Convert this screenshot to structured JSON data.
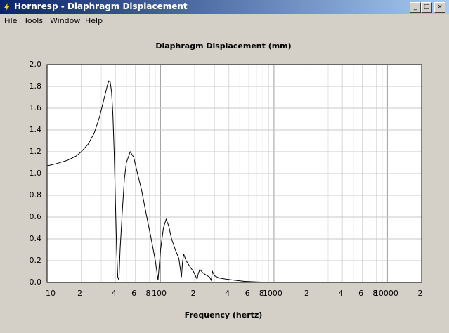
{
  "window": {
    "title": "Hornresp - Diaphragm Displacement",
    "menu": [
      "File",
      "Tools",
      "Window",
      "Help"
    ]
  },
  "chart_data": {
    "type": "line",
    "title": "Diaphragm Displacement (mm)",
    "xlabel": "Frequency (hertz)",
    "xscale": "log",
    "grid": true,
    "x": [
      10,
      12,
      15,
      18,
      20,
      23,
      26,
      29,
      32,
      34,
      35,
      36,
      37,
      38,
      39,
      40,
      41,
      42,
      43,
      44,
      46,
      48,
      50,
      54,
      58,
      62,
      68,
      75,
      82,
      90,
      95,
      100,
      106,
      112,
      118,
      125,
      135,
      145,
      153,
      156,
      160,
      168,
      180,
      195,
      210,
      215,
      222,
      235,
      250,
      270,
      280,
      287,
      300,
      330,
      380,
      450,
      550,
      700,
      850,
      1000
    ],
    "series": [
      {
        "color": "#000000",
        "values": [
          1.07,
          1.09,
          1.12,
          1.16,
          1.2,
          1.27,
          1.37,
          1.52,
          1.7,
          1.81,
          1.85,
          1.84,
          1.75,
          1.55,
          1.2,
          0.75,
          0.3,
          0.05,
          0.02,
          0.3,
          0.65,
          0.95,
          1.1,
          1.2,
          1.15,
          1.02,
          0.85,
          0.62,
          0.42,
          0.2,
          0.02,
          0.3,
          0.5,
          0.58,
          0.52,
          0.4,
          0.3,
          0.22,
          0.05,
          0.18,
          0.26,
          0.2,
          0.15,
          0.1,
          0.03,
          0.08,
          0.12,
          0.09,
          0.07,
          0.05,
          0.02,
          0.1,
          0.06,
          0.04,
          0.03,
          0.02,
          0.01,
          0.005,
          0.002,
          0
        ]
      }
    ],
    "xlim": [
      10,
      20000
    ],
    "ylim": [
      0,
      2
    ],
    "xticks": [
      10,
      {
        "value": 20,
        "label": "2"
      },
      {
        "value": 40,
        "label": "4"
      },
      {
        "value": 60,
        "label": "6"
      },
      {
        "value": 80,
        "label": "8"
      },
      100,
      {
        "value": 200,
        "label": "2"
      },
      {
        "value": 400,
        "label": "4"
      },
      {
        "value": 600,
        "label": "6"
      },
      {
        "value": 800,
        "label": "8"
      },
      1000,
      {
        "value": 2000,
        "label": "2"
      },
      {
        "value": 4000,
        "label": "4"
      },
      {
        "value": 6000,
        "label": "6"
      },
      {
        "value": 8000,
        "label": "8"
      },
      10000,
      {
        "value": 20000,
        "label": "2"
      }
    ],
    "xminorticks": [
      30,
      50,
      70,
      90,
      300,
      500,
      700,
      900,
      3000,
      5000,
      7000,
      9000
    ],
    "yticks": [
      {
        "value": 0,
        "label": "0.0"
      },
      0.2,
      0.4,
      0.6,
      0.8,
      {
        "value": 1,
        "label": "1.0"
      },
      1.2,
      1.4,
      1.6,
      1.8,
      {
        "value": 2,
        "label": "2.0"
      }
    ]
  }
}
